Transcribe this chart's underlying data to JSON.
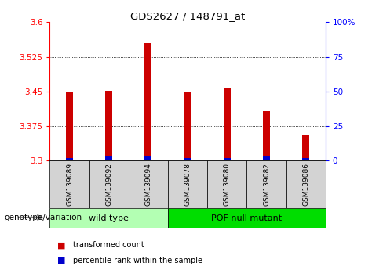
{
  "title": "GDS2627 / 148791_at",
  "samples": [
    "GSM139089",
    "GSM139092",
    "GSM139094",
    "GSM139078",
    "GSM139080",
    "GSM139082",
    "GSM139086"
  ],
  "transformed_counts": [
    3.448,
    3.452,
    3.555,
    3.45,
    3.458,
    3.408,
    3.355
  ],
  "percentile_ranks": [
    2,
    3,
    3,
    2,
    2,
    3,
    2
  ],
  "y_min": 3.3,
  "y_max": 3.6,
  "y_ticks": [
    3.3,
    3.375,
    3.45,
    3.525,
    3.6
  ],
  "y_tick_labels": [
    "3.3",
    "3.375",
    "3.45",
    "3.525",
    "3.6"
  ],
  "right_y_ticks": [
    0,
    25,
    50,
    75,
    100
  ],
  "right_y_labels": [
    "0",
    "25",
    "50",
    "75",
    "100%"
  ],
  "bar_color": "#cc0000",
  "percentile_color": "#0000cc",
  "groups": [
    {
      "label": "wild type",
      "samples": [
        0,
        1,
        2
      ],
      "color": "#b3ffb3"
    },
    {
      "label": "POF null mutant",
      "samples": [
        3,
        4,
        5,
        6
      ],
      "color": "#00dd00"
    }
  ],
  "legend_items": [
    {
      "color": "#cc0000",
      "label": "transformed count"
    },
    {
      "color": "#0000cc",
      "label": "percentile rank within the sample"
    }
  ],
  "genotype_label": "genotype/variation",
  "tick_bg": "#d3d3d3"
}
